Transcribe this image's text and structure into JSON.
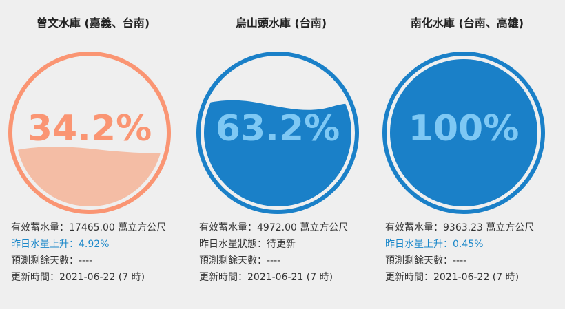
{
  "reservoirs": [
    {
      "name": "曾文水庫 (嘉義、台南)",
      "percent": "34.2%",
      "fill_fraction": 0.342,
      "ring_color": "#fa9573",
      "water_color": "#f4bda5",
      "text_color": "#fa9573",
      "info": {
        "capacity": "有效蓄水量：17465.00 萬立方公尺",
        "change": "昨日水量上升：4.92%",
        "remaining": "預測剩餘天數：----",
        "updated": "更新時間：2021-06-22 (7 時)"
      }
    },
    {
      "name": "烏山頭水庫 (台南)",
      "percent": "63.2%",
      "fill_fraction": 0.632,
      "ring_color": "#1a80c8",
      "water_color": "#1a80c8",
      "text_color": "#7ec8f4",
      "info": {
        "capacity": "有效蓄水量：4972.00 萬立方公尺",
        "change": "昨日水量狀態：待更新",
        "remaining": "預測剩餘天數：----",
        "updated": "更新時間：2021-06-21 (7 時)"
      }
    },
    {
      "name": "南化水庫 (台南、高雄)",
      "percent": "100%",
      "fill_fraction": 1.0,
      "ring_color": "#1a80c8",
      "water_color": "#1a80c8",
      "text_color": "#7ec8f4",
      "info": {
        "capacity": "有效蓄水量：9363.23 萬立方公尺",
        "change": "昨日水量上升：0.45%",
        "remaining": "預測剩餘天數：----",
        "updated": "更新時間：2021-06-22 (7 時)"
      }
    }
  ]
}
